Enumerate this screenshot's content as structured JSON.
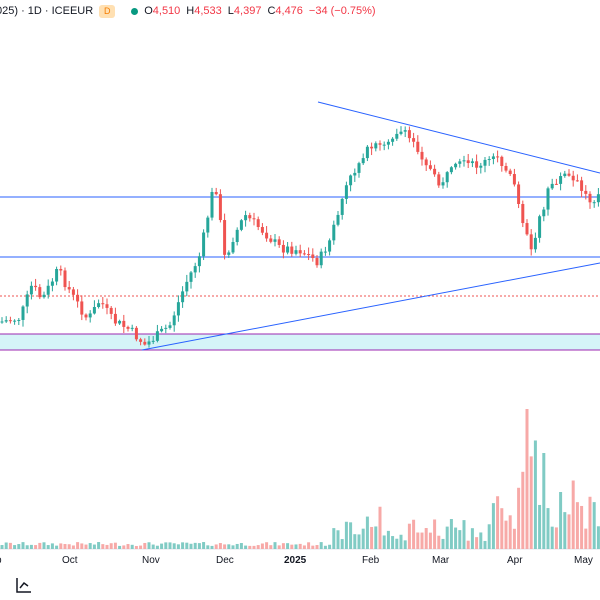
{
  "header": {
    "title_fragment": "025) · 1D · ICEEUR",
    "badge": "D",
    "ohlc": [
      {
        "k": "O",
        "v": "4,510"
      },
      {
        "k": "H",
        "v": "4,533"
      },
      {
        "k": "L",
        "v": "4,397"
      },
      {
        "k": "C",
        "v": "4,476"
      }
    ],
    "change": "−34 (−0.75%)"
  },
  "time_axis": [
    "p",
    "Oct",
    "Nov",
    "Dec",
    "2025",
    "Feb",
    "Mar",
    "Apr",
    "May"
  ],
  "colors": {
    "up": "#26a69a",
    "down": "#ef5350",
    "line": "#2962ff",
    "purple": "#9c27b0",
    "band": "#b2ebf2"
  },
  "icons": {
    "corner": "chart-settings-icon"
  }
}
